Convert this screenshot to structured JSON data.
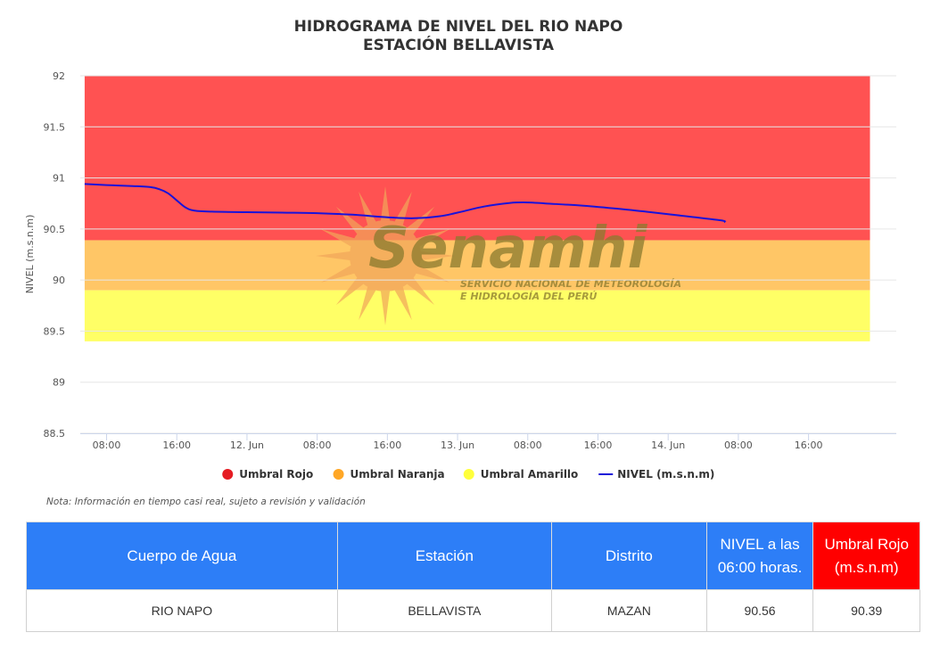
{
  "chart_data": {
    "type": "line",
    "title": [
      "HIDROGRAMA DE NIVEL DEL RIO NAPO",
      "ESTACIÓN BELLAVISTA"
    ],
    "ylabel": "NIVEL (m.s.n.m)",
    "xlabel": "",
    "ylim": [
      88.5,
      92
    ],
    "xlim": [
      "2024-06-11T05:00",
      "2024-06-15T02:00"
    ],
    "yticks": [
      "88.5",
      "89",
      "89.5",
      "90",
      "90.5",
      "91",
      "91.5",
      "92"
    ],
    "xticks": [
      {
        "t": "2024-06-11T08:00",
        "label": "08:00"
      },
      {
        "t": "2024-06-11T16:00",
        "label": "16:00"
      },
      {
        "t": "2024-06-12T00:00",
        "label": "12. Jun"
      },
      {
        "t": "2024-06-12T08:00",
        "label": "08:00"
      },
      {
        "t": "2024-06-12T16:00",
        "label": "16:00"
      },
      {
        "t": "2024-06-13T00:00",
        "label": "13. Jun"
      },
      {
        "t": "2024-06-13T08:00",
        "label": "08:00"
      },
      {
        "t": "2024-06-13T16:00",
        "label": "16:00"
      },
      {
        "t": "2024-06-14T00:00",
        "label": "14. Jun"
      },
      {
        "t": "2024-06-14T08:00",
        "label": "08:00"
      },
      {
        "t": "2024-06-14T16:00",
        "label": "16:00"
      }
    ],
    "bands": [
      {
        "name": "Umbral Rojo",
        "from": 90.39,
        "to": 92,
        "color": "#ff5252"
      },
      {
        "name": "Umbral Naranja",
        "from": 89.9,
        "to": 90.39,
        "color": "#ffc666"
      },
      {
        "name": "Umbral Amarillo",
        "from": 89.4,
        "to": 89.9,
        "color": "#ffff66"
      }
    ],
    "band_x_range": [
      "2024-06-11T05:30",
      "2024-06-14T23:00"
    ],
    "series": [
      {
        "name": "NIVEL (m.s.n.m)",
        "color": "#1a12d9",
        "points": [
          [
            "2024-06-11T05:30",
            90.94
          ],
          [
            "2024-06-11T08:00",
            90.93
          ],
          [
            "2024-06-11T11:00",
            90.92
          ],
          [
            "2024-06-11T13:00",
            90.91
          ],
          [
            "2024-06-11T14:00",
            90.89
          ],
          [
            "2024-06-11T15:00",
            90.85
          ],
          [
            "2024-06-11T16:00",
            90.78
          ],
          [
            "2024-06-11T17:00",
            90.71
          ],
          [
            "2024-06-11T18:00",
            90.68
          ],
          [
            "2024-06-11T20:00",
            90.67
          ],
          [
            "2024-06-12T00:00",
            90.665
          ],
          [
            "2024-06-12T04:00",
            90.66
          ],
          [
            "2024-06-12T08:00",
            90.655
          ],
          [
            "2024-06-12T12:00",
            90.64
          ],
          [
            "2024-06-12T16:00",
            90.615
          ],
          [
            "2024-06-12T19:00",
            90.605
          ],
          [
            "2024-06-12T22:00",
            90.625
          ],
          [
            "2024-06-13T00:00",
            90.66
          ],
          [
            "2024-06-13T03:00",
            90.72
          ],
          [
            "2024-06-13T06:00",
            90.755
          ],
          [
            "2024-06-13T08:00",
            90.76
          ],
          [
            "2024-06-13T10:00",
            90.75
          ],
          [
            "2024-06-13T14:00",
            90.73
          ],
          [
            "2024-06-13T18:00",
            90.7
          ],
          [
            "2024-06-13T22:00",
            90.665
          ],
          [
            "2024-06-14T02:00",
            90.625
          ],
          [
            "2024-06-14T06:00",
            90.585
          ],
          [
            "2024-06-14T06:30",
            90.565
          ]
        ]
      }
    ],
    "legend": {
      "position": "bottom-center",
      "items": [
        {
          "label": "Umbral Rojo",
          "color": "#e51c23",
          "symbol": "circle"
        },
        {
          "label": "Umbral Naranja",
          "color": "#ffa726",
          "symbol": "circle"
        },
        {
          "label": "Umbral Amarillo",
          "color": "#ffff3b",
          "symbol": "circle"
        },
        {
          "label": "NIVEL (m.s.n.m)",
          "color": "#1a12d9",
          "symbol": "line"
        }
      ]
    },
    "grid": true,
    "note": "Nota: Información en tiempo casi real, sujeto a revisión y validación"
  },
  "watermark": {
    "brand": "Senamhi",
    "lines": [
      "SERVICIO NACIONAL DE METEOROLOGÍA",
      "E HIDROLOGÍA DEL PERÚ"
    ],
    "sun_color": "#f2a65a"
  },
  "table": {
    "headers": [
      {
        "text": "Cuerpo de Agua",
        "bg": "#2d7ef7"
      },
      {
        "text": "Estación",
        "bg": "#2d7ef7"
      },
      {
        "text": "Distrito",
        "bg": "#2d7ef7"
      },
      {
        "text": "NIVEL a las 06:00 horas.",
        "bg": "#2d7ef7"
      },
      {
        "text": "Umbral Rojo (m.s.n.m)",
        "bg": "#ff0000"
      }
    ],
    "row": [
      "RIO NAPO",
      "BELLAVISTA",
      "MAZAN",
      "90.56",
      "90.39"
    ]
  }
}
